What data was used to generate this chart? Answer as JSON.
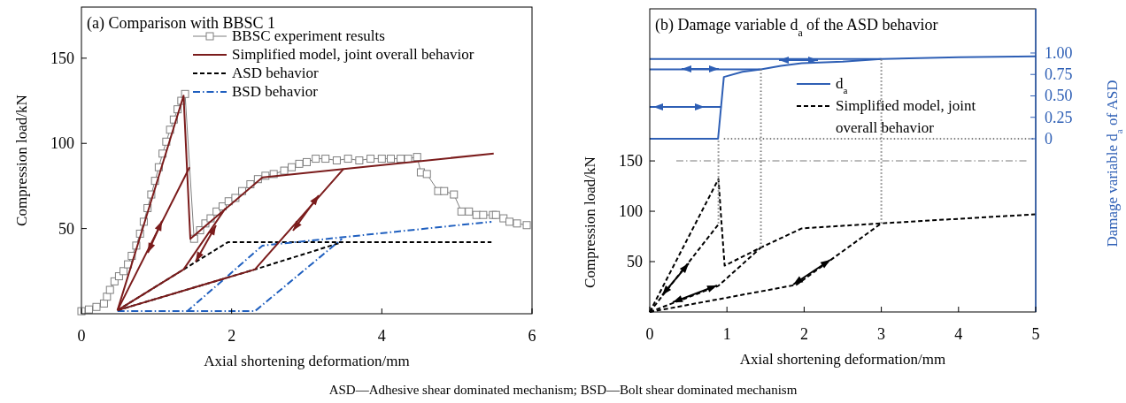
{
  "chart_data": [
    {
      "type": "line",
      "title": "(a) Comparison with BBSC 1",
      "xlabel": "Axial shortening deformation/mm",
      "ylabel": "Compression load/kN",
      "xlim": [
        0,
        6
      ],
      "ylim": [
        0,
        180
      ],
      "xticks": [
        0,
        2,
        4,
        6
      ],
      "yticks": [
        50,
        100,
        150
      ],
      "legend": "top right",
      "annotations": [
        "ASD—Adhesive shear dominated mechanism; BSD—Bolt shear dominated mechanism"
      ],
      "series": [
        {
          "name": "BBSC experiment results",
          "color": "#7f7f7f",
          "marker": "square",
          "line_style": "solid",
          "x": [
            0,
            0.1,
            0.2,
            0.3,
            0.34,
            0.38,
            0.44,
            0.5,
            0.56,
            0.62,
            0.67,
            0.73,
            0.78,
            0.83,
            0.88,
            0.93,
            0.98,
            1.03,
            1.08,
            1.13,
            1.18,
            1.23,
            1.28,
            1.33,
            1.38,
            1.5,
            1.58,
            1.65,
            1.72,
            1.8,
            1.88,
            1.96,
            2.05,
            2.14,
            2.25,
            2.35,
            2.45,
            2.56,
            2.7,
            2.8,
            2.9,
            3.0,
            3.12,
            3.25,
            3.4,
            3.55,
            3.7,
            3.85,
            4.0,
            4.12,
            4.25,
            4.35,
            4.47,
            4.52,
            4.6,
            4.75,
            4.83,
            4.96,
            5.06,
            5.16,
            5.26,
            5.35,
            5.48,
            5.52,
            5.62,
            5.7,
            5.8,
            5.93
          ],
          "values": [
            1.5,
            2.5,
            4,
            6,
            10,
            14,
            19,
            22,
            25,
            29,
            34,
            40,
            47,
            54,
            62,
            70,
            78,
            86,
            94,
            101,
            108,
            114,
            120,
            125,
            129,
            44,
            49,
            53,
            56,
            60,
            63,
            66,
            68,
            72,
            76,
            79,
            81,
            82,
            84,
            86,
            88,
            89,
            91,
            91,
            90,
            91,
            90,
            91,
            91,
            91,
            91,
            91,
            92,
            83,
            82,
            72,
            72,
            70,
            60,
            60,
            58,
            58,
            58,
            58,
            56,
            54,
            53,
            52
          ]
        },
        {
          "name": "Simplified model, joint overall behavior",
          "color": "#7b1c1c",
          "line_style": "solid",
          "x": [
            0.48,
            1.36,
            1.45,
            2.41,
            3.49,
            5.49
          ],
          "values": [
            2,
            128,
            44,
            80,
            85,
            94
          ]
        },
        {
          "name": "ASD behavior",
          "color": "#000000",
          "line_style": "dashed",
          "x": [
            0.48,
            1.36,
            1.95,
            5.46
          ],
          "values": [
            2,
            26,
            42,
            42
          ]
        },
        {
          "name": "BSD behavior",
          "color": "#1f5fbf",
          "line_style": "dashdot",
          "x": [
            0.48,
            1.41,
            2.41,
            5.46
          ],
          "values": [
            1.5,
            1.5,
            40,
            54
          ]
        },
        {
          "color": "#000000",
          "line_style": "dashed",
          "x": [
            0.48,
            2.31,
            3.47
          ],
          "values": [
            2,
            26,
            42
          ]
        },
        {
          "color": "#1f5fbf",
          "line_style": "dashdot",
          "x": [
            1.41,
            2.31,
            3.47
          ],
          "values": [
            1.5,
            1.5,
            44
          ]
        },
        {
          "color": "#7b1c1c",
          "line_style": "solid",
          "x": [
            0.48,
            1.44
          ],
          "values": [
            2,
            86
          ]
        },
        {
          "color": "#7b1c1c",
          "line_style": "solid",
          "x": [
            0.48,
            1.36,
            1.92
          ],
          "values": [
            2,
            26,
            62
          ]
        },
        {
          "color": "#7b1c1c",
          "line_style": "solid",
          "x": [
            0.48,
            2.31,
            3.49
          ],
          "values": [
            2,
            26,
            85
          ]
        }
      ]
    },
    {
      "type": "line",
      "title": "(b) Damage variable d$_{a}$ of the ASD behavior",
      "xlabel": "Axial shortening deformation/mm",
      "ylabel": "Compression load/kN",
      "y2label": "Damage variable d$_{a}$ of ASD",
      "xlim": [
        0,
        5
      ],
      "ylim": [
        0,
        301
      ],
      "y2lim": [
        -2.02,
        1.515
      ],
      "xticks": [
        0,
        1,
        2,
        3,
        4,
        5
      ],
      "yticks": [
        50,
        100,
        150
      ],
      "y2ticks": [
        0,
        {
          "value": 0.25,
          "label": "0.25"
        },
        {
          "value": 0.5,
          "label": "0.50"
        },
        {
          "value": 0.75,
          "label": "0.75"
        },
        {
          "value": 1,
          "label": "1.00"
        }
      ],
      "legend": "top right",
      "ref_lines": [
        {
          "axis": "y",
          "value": 150,
          "color": "#a6a6a6",
          "line_style": "dashdot"
        }
      ],
      "series": [
        {
          "name": "d$_{a}$",
          "color": "#2e5fb5",
          "axis": "y2",
          "line_style": "solid",
          "x": [
            0,
            0.885,
            0.96,
            1.2,
            1.44,
            1.7,
            1.97,
            2.5,
            3.0,
            4.0,
            5.0
          ],
          "values": [
            0,
            0,
            0.72,
            0.78,
            0.81,
            0.85,
            0.88,
            0.9,
            0.93,
            0.95,
            0.96
          ]
        },
        {
          "name": "Simplified model, joint overall behavior",
          "color": "#000000",
          "line_style": "dashed",
          "x": [
            0,
            0.89,
            0.93,
            0.97,
            1.44,
            1.97,
            3.0,
            5.0
          ],
          "values": [
            0,
            132,
            88,
            46,
            64,
            83,
            88,
            97
          ]
        },
        {
          "color": "#2e5fb5",
          "axis": "y2",
          "line_style": "solid",
          "x": [
            0,
            0.93
          ],
          "values": [
            0.37,
            0.37
          ]
        },
        {
          "color": "#2e5fb5",
          "axis": "y2",
          "line_style": "solid",
          "x": [
            0,
            1.44
          ],
          "values": [
            0.81,
            0.81
          ]
        },
        {
          "color": "#2e5fb5",
          "axis": "y2",
          "line_style": "solid",
          "x": [
            0,
            3.0
          ],
          "values": [
            0.93,
            0.93
          ]
        },
        {
          "color": "#000000",
          "line_style": "dashed",
          "x": [
            0,
            0.9
          ],
          "values": [
            0,
            88
          ]
        },
        {
          "color": "#000000",
          "line_style": "dashed",
          "x": [
            0,
            0.89,
            1.44
          ],
          "values": [
            0,
            26,
            64
          ]
        },
        {
          "color": "#000000",
          "line_style": "dashed",
          "x": [
            0,
            1.9,
            3.0
          ],
          "values": [
            0,
            27,
            88
          ]
        },
        {
          "color": "#808080",
          "line_style": "dotted",
          "x": [
            0.89,
            0.89
          ],
          "values": [
            88,
            172
          ]
        },
        {
          "color": "#808080",
          "line_style": "dotted",
          "x": [
            1.44,
            1.44
          ],
          "values": [
            64,
            241
          ]
        },
        {
          "color": "#808080",
          "line_style": "dotted",
          "x": [
            3.0,
            3.0
          ],
          "values": [
            88,
            251
          ]
        },
        {
          "color": "#808080",
          "axis": "y2",
          "line_style": "dotted",
          "x": [
            0.96,
            5
          ],
          "values": [
            0,
            0
          ]
        }
      ]
    }
  ]
}
